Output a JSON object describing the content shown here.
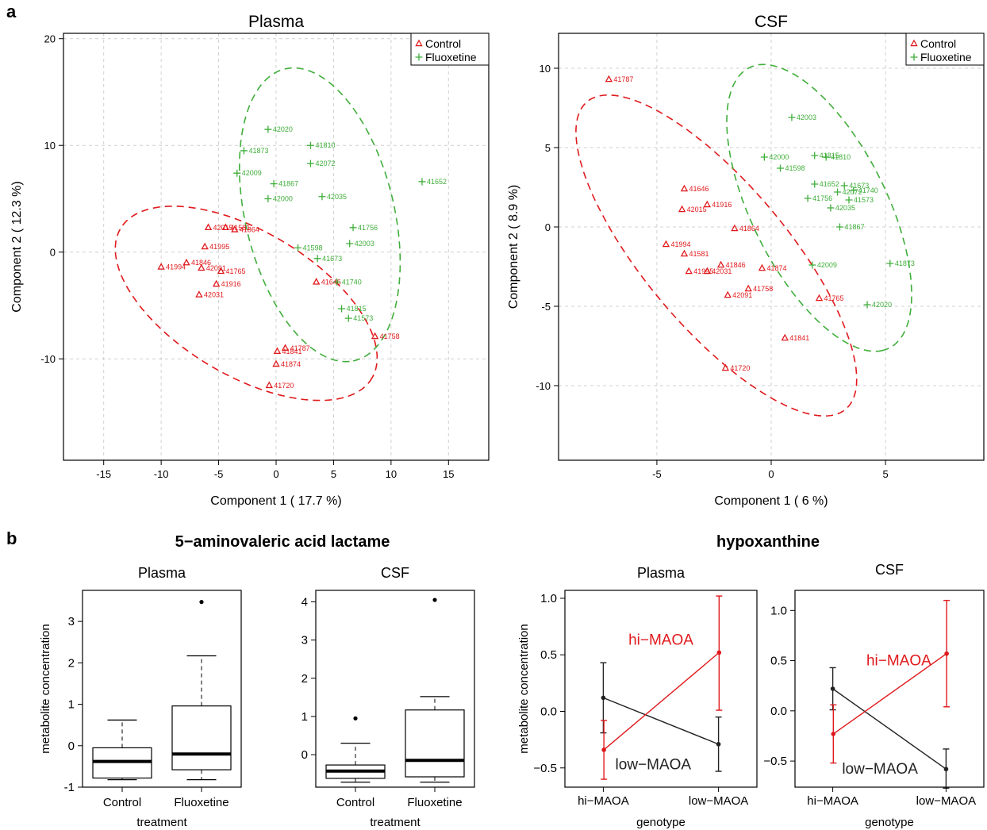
{
  "panel_labels": {
    "a": "a",
    "b": "b"
  },
  "group_titles": {
    "left": "5−aminovaleric acid lactame",
    "right": "hypoxanthine"
  },
  "chart_data": [
    {
      "type": "scatter",
      "title": "Plasma",
      "xlabel": "Component 1 ( 17.7 %)",
      "ylabel": "Component 2 ( 12.3 %)",
      "xlim": [
        -18.5,
        18.5
      ],
      "ylim": [
        -19.5,
        20.5
      ],
      "xticks": [
        -15,
        -10,
        -5,
        0,
        5,
        10,
        15
      ],
      "yticks": [
        -10,
        0,
        10,
        20
      ],
      "grid": true,
      "legend": {
        "position": "top-right",
        "entries": [
          "Control",
          "Fluoxetine"
        ]
      },
      "colors": {
        "Control": "#e0191c",
        "Fluoxetine": "#3fae3a"
      },
      "series": [
        {
          "name": "Control",
          "points": [
            {
              "x": -5.9,
              "y": 2.3,
              "label": "42015"
            },
            {
              "x": -4.4,
              "y": 2.3,
              "label": "41581"
            },
            {
              "x": -3.6,
              "y": 2.1,
              "label": "41864"
            },
            {
              "x": -6.2,
              "y": 0.5,
              "label": "41995"
            },
            {
              "x": -7.8,
              "y": -1.0,
              "label": "41846"
            },
            {
              "x": -10.0,
              "y": -1.4,
              "label": "41994"
            },
            {
              "x": -6.5,
              "y": -1.5,
              "label": "42091"
            },
            {
              "x": -4.8,
              "y": -1.8,
              "label": "41765"
            },
            {
              "x": -5.2,
              "y": -3.0,
              "label": "41916"
            },
            {
              "x": -6.7,
              "y": -4.0,
              "label": "42031"
            },
            {
              "x": 3.5,
              "y": -2.8,
              "label": "41646"
            },
            {
              "x": 8.6,
              "y": -7.9,
              "label": "41758"
            },
            {
              "x": 0.8,
              "y": -9.0,
              "label": "41787"
            },
            {
              "x": 0.1,
              "y": -9.3,
              "label": "41841"
            },
            {
              "x": 0.0,
              "y": -10.5,
              "label": "41874"
            },
            {
              "x": -0.6,
              "y": -12.5,
              "label": "41720"
            }
          ],
          "ellipse": {
            "center": [
              -2.6,
              -4.8
            ],
            "semi_axes": [
              13.0,
              6.6
            ],
            "angle_deg": -34
          }
        },
        {
          "name": "Fluoxetine",
          "points": [
            {
              "x": -0.7,
              "y": 11.5,
              "label": "42020"
            },
            {
              "x": 3.0,
              "y": 10.0,
              "label": "41810"
            },
            {
              "x": -2.8,
              "y": 9.5,
              "label": "41873"
            },
            {
              "x": 3.0,
              "y": 8.3,
              "label": "42072"
            },
            {
              "x": -3.4,
              "y": 7.4,
              "label": "42009"
            },
            {
              "x": -0.2,
              "y": 6.4,
              "label": "41867"
            },
            {
              "x": -0.7,
              "y": 5.0,
              "label": "42000"
            },
            {
              "x": 4.0,
              "y": 5.2,
              "label": "42035"
            },
            {
              "x": 12.7,
              "y": 6.6,
              "label": "41652"
            },
            {
              "x": 6.7,
              "y": 2.3,
              "label": "41756"
            },
            {
              "x": 6.4,
              "y": 0.8,
              "label": "42003"
            },
            {
              "x": 1.9,
              "y": 0.4,
              "label": "41598"
            },
            {
              "x": 3.6,
              "y": -0.6,
              "label": "41673"
            },
            {
              "x": 5.3,
              "y": -2.8,
              "label": "41740"
            },
            {
              "x": 5.7,
              "y": -5.3,
              "label": "41815"
            },
            {
              "x": 6.3,
              "y": -6.2,
              "label": "41573"
            }
          ],
          "ellipse": {
            "center": [
              3.8,
              3.5
            ],
            "semi_axes": [
              14.0,
              6.5
            ],
            "angle_deg": -78
          }
        }
      ]
    },
    {
      "type": "scatter",
      "title": "CSF",
      "xlabel": "Component 1 ( 6 %)",
      "ylabel": "Component 2 ( 8.9 %)",
      "xlim": [
        -9.3,
        9.3
      ],
      "ylim": [
        -14.7,
        12.2
      ],
      "xticks": [
        -5,
        0,
        5
      ],
      "yticks": [
        -10,
        -5,
        0,
        5,
        10
      ],
      "grid": true,
      "legend": {
        "position": "top-right",
        "entries": [
          "Control",
          "Fluoxetine"
        ]
      },
      "colors": {
        "Control": "#e0191c",
        "Fluoxetine": "#3fae3a"
      },
      "series": [
        {
          "name": "Control",
          "points": [
            {
              "x": -7.1,
              "y": 9.3,
              "label": "41787"
            },
            {
              "x": -3.8,
              "y": 2.4,
              "label": "41646"
            },
            {
              "x": -3.9,
              "y": 1.1,
              "label": "42015"
            },
            {
              "x": -2.8,
              "y": 1.4,
              "label": "41916"
            },
            {
              "x": -1.6,
              "y": -0.1,
              "label": "41864"
            },
            {
              "x": -4.6,
              "y": -1.1,
              "label": "41994"
            },
            {
              "x": -3.8,
              "y": -1.7,
              "label": "41581"
            },
            {
              "x": -2.2,
              "y": -2.4,
              "label": "41846"
            },
            {
              "x": -0.4,
              "y": -2.6,
              "label": "41874"
            },
            {
              "x": -3.6,
              "y": -2.8,
              "label": "41995"
            },
            {
              "x": -2.8,
              "y": -2.8,
              "label": "42031"
            },
            {
              "x": -1.0,
              "y": -3.9,
              "label": "41758"
            },
            {
              "x": -1.9,
              "y": -4.3,
              "label": "42091"
            },
            {
              "x": 2.1,
              "y": -4.5,
              "label": "41765"
            },
            {
              "x": 0.6,
              "y": -7.0,
              "label": "41841"
            },
            {
              "x": -2.0,
              "y": -8.9,
              "label": "41720"
            }
          ],
          "ellipse": {
            "center": [
              -2.4,
              -1.8
            ],
            "semi_axes": [
              11.3,
              3.5
            ],
            "angle_deg": -62
          }
        },
        {
          "name": "Fluoxetine",
          "points": [
            {
              "x": 0.9,
              "y": 6.9,
              "label": "42003"
            },
            {
              "x": -0.3,
              "y": 4.4,
              "label": "42000"
            },
            {
              "x": 0.4,
              "y": 3.7,
              "label": "41598"
            },
            {
              "x": 1.9,
              "y": 4.5,
              "label": "41815"
            },
            {
              "x": 2.4,
              "y": 4.4,
              "label": "41810"
            },
            {
              "x": 1.9,
              "y": 2.7,
              "label": "41652"
            },
            {
              "x": 3.2,
              "y": 2.6,
              "label": "41673"
            },
            {
              "x": 2.9,
              "y": 2.2,
              "label": "42072"
            },
            {
              "x": 3.6,
              "y": 2.3,
              "label": "41740"
            },
            {
              "x": 1.6,
              "y": 1.8,
              "label": "41756"
            },
            {
              "x": 3.4,
              "y": 1.7,
              "label": "41573"
            },
            {
              "x": 2.6,
              "y": 1.2,
              "label": "42035"
            },
            {
              "x": 3.0,
              "y": 0.0,
              "label": "41867"
            },
            {
              "x": 1.8,
              "y": -2.4,
              "label": "42009"
            },
            {
              "x": 5.2,
              "y": -2.3,
              "label": "41873"
            },
            {
              "x": 4.2,
              "y": -4.9,
              "label": "42020"
            }
          ],
          "ellipse": {
            "center": [
              2.1,
              1.2
            ],
            "semi_axes": [
              9.4,
              3.1
            ],
            "angle_deg": -73
          }
        }
      ]
    },
    {
      "type": "box",
      "title": "Plasma",
      "xlabel": "treatment",
      "ylabel": "metabolite concentration",
      "categories": [
        "Control",
        "Fluoxetine"
      ],
      "ylim": [
        -1.0,
        3.75
      ],
      "yticks": [
        -1,
        0,
        1,
        2,
        3
      ],
      "boxes": [
        {
          "min": -0.82,
          "q1": -0.78,
          "median": -0.38,
          "q3": -0.05,
          "max": 0.62,
          "outliers": []
        },
        {
          "min": -0.82,
          "q1": -0.58,
          "median": -0.2,
          "q3": 0.96,
          "max": 2.17,
          "outliers": [
            3.47
          ]
        }
      ]
    },
    {
      "type": "box",
      "title": "CSF",
      "xlabel": "treatment",
      "ylabel": "",
      "categories": [
        "Control",
        "Fluoxetine"
      ],
      "ylim": [
        -0.85,
        4.3
      ],
      "yticks": [
        0,
        1,
        2,
        3,
        4
      ],
      "boxes": [
        {
          "min": -0.72,
          "q1": -0.62,
          "median": -0.43,
          "q3": -0.27,
          "max": 0.3,
          "outliers": [
            0.95
          ]
        },
        {
          "min": -0.72,
          "q1": -0.58,
          "median": -0.15,
          "q3": 1.17,
          "max": 1.52,
          "outliers": [
            4.05
          ]
        }
      ]
    },
    {
      "type": "line",
      "title": "Plasma",
      "xlabel": "genotype",
      "ylabel": "metabolite concentration",
      "categories": [
        "hi−MAOA",
        "low−MAOA"
      ],
      "ylim": [
        -0.67,
        1.07
      ],
      "yticks": [
        -0.5,
        0.0,
        0.5,
        1.0
      ],
      "ytick_labels": [
        "−0.5",
        "0.0",
        "0.5",
        "1.0"
      ],
      "series": [
        {
          "name": "low−MAOA",
          "color": "#222222",
          "values": [
            0.12,
            -0.29
          ],
          "err_low": [
            -0.19,
            -0.53
          ],
          "err_high": [
            0.43,
            -0.05
          ],
          "offset": 0
        },
        {
          "name": "hi−MAOA",
          "color": "#e0191c",
          "values": [
            -0.34,
            0.52
          ],
          "err_low": [
            -0.6,
            0.01
          ],
          "err_high": [
            -0.08,
            1.02
          ],
          "offset": 0.03
        }
      ],
      "labels": [
        {
          "text": "hi−MAOA",
          "color": "#e0191c",
          "at": [
            0.5,
            0.63
          ]
        },
        {
          "text": "low−MAOA",
          "color": "#222222",
          "at": [
            0.46,
            -0.47
          ]
        }
      ]
    },
    {
      "type": "line",
      "title": "CSF",
      "xlabel": "genotype",
      "ylabel": "",
      "categories": [
        "hi−MAOA",
        "low−MAOA"
      ],
      "ylim": [
        -0.76,
        1.2
      ],
      "yticks": [
        -0.5,
        0.0,
        0.5,
        1.0
      ],
      "ytick_labels": [
        "−0.5",
        "0.0",
        "0.5",
        "1.0"
      ],
      "series": [
        {
          "name": "low−MAOA",
          "color": "#222222",
          "values": [
            0.22,
            -0.58
          ],
          "err_low": [
            0.01,
            -0.77
          ],
          "err_high": [
            0.43,
            -0.38
          ],
          "offset": 0
        },
        {
          "name": "hi−MAOA",
          "color": "#e0191c",
          "values": [
            -0.23,
            0.57
          ],
          "err_low": [
            -0.52,
            0.04
          ],
          "err_high": [
            0.06,
            1.1
          ],
          "offset": 0.03
        }
      ],
      "labels": [
        {
          "text": "hi−MAOA",
          "color": "#e0191c",
          "at": [
            0.55,
            0.5
          ]
        },
        {
          "text": "low−MAOA",
          "color": "#222222",
          "at": [
            0.45,
            -0.58
          ]
        }
      ]
    }
  ]
}
